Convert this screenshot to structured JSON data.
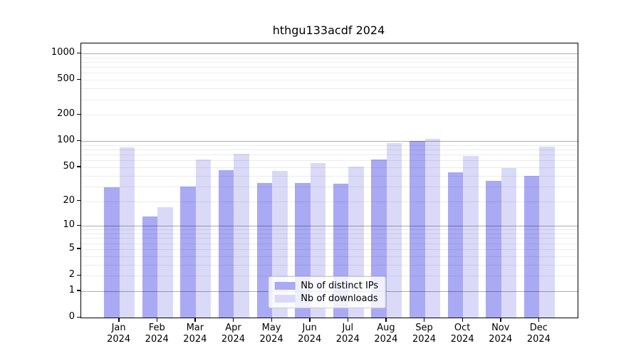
{
  "chart_data": {
    "type": "bar",
    "title": "hthgu133acdf 2024",
    "categories": [
      "Jan",
      "Feb",
      "Mar",
      "Apr",
      "May",
      "Jun",
      "Jul",
      "Aug",
      "Sep",
      "Oct",
      "Nov",
      "Dec"
    ],
    "year": "2024",
    "series": [
      {
        "name": "Nb of distinct IPs",
        "color": "#a9a9f4",
        "values": [
          29,
          13,
          30,
          46,
          33,
          33,
          32,
          62,
          100,
          44,
          35,
          40
        ]
      },
      {
        "name": "Nb of downloads",
        "color": "#dadaf8",
        "values": [
          85,
          17,
          62,
          72,
          45,
          56,
          51,
          95,
          107,
          67,
          49,
          86
        ]
      }
    ],
    "y_scale": "log1p",
    "y_ticks": [
      1000,
      500,
      200,
      100,
      50,
      20,
      10,
      5,
      2,
      1,
      0
    ],
    "y_major_gridlines": [
      1,
      10,
      100,
      1000
    ],
    "ylim": [
      0,
      1300
    ],
    "xlabel": "",
    "ylabel": "",
    "grid": true,
    "legend_position": "bottom-center"
  }
}
